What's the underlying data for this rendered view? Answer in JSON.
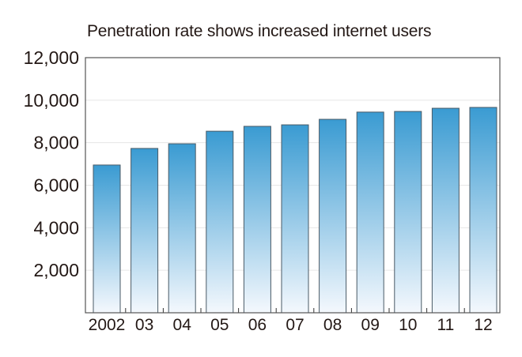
{
  "chart_data": {
    "type": "bar",
    "title": "Penetration rate shows increased internet users",
    "xlabel": "",
    "ylabel": "",
    "categories": [
      "2002",
      "03",
      "04",
      "05",
      "06",
      "07",
      "08",
      "09",
      "10",
      "11",
      "12"
    ],
    "values": [
      6950,
      7730,
      7950,
      8540,
      8770,
      8840,
      9100,
      9440,
      9470,
      9620,
      9660
    ],
    "ylim": [
      0,
      12000
    ],
    "yticks": [
      2000,
      4000,
      6000,
      8000,
      10000,
      12000
    ],
    "ytick_labels": [
      "2,000",
      "4,000",
      "6,000",
      "8,000",
      "10,000",
      "12,000"
    ],
    "grid": true,
    "legend": "none",
    "colors": {
      "bar_top": "#3a9bd2",
      "bar_bottom": "#f4f8fd",
      "bar_edge": "#4a5a66",
      "grid": "#e6e6e6",
      "axis": "#555555"
    }
  }
}
